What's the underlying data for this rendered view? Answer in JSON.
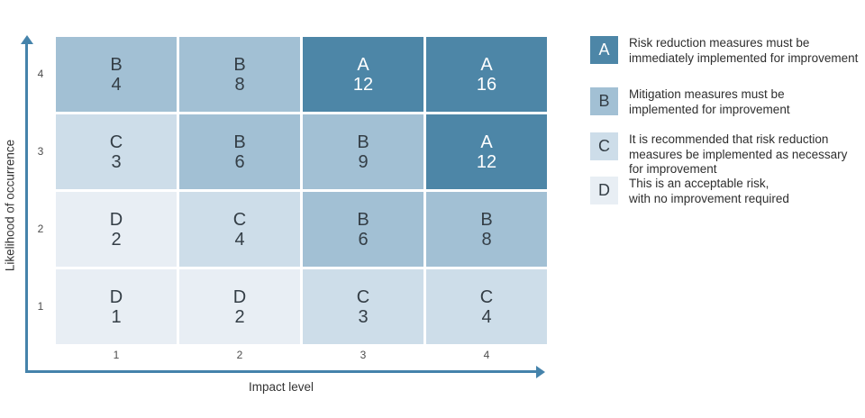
{
  "chart_data": {
    "type": "heatmap",
    "title": "",
    "xlabel": "Impact level",
    "ylabel": "Likelihood of occurrence",
    "x_tick_labels": [
      "1",
      "2",
      "3",
      "4"
    ],
    "y_tick_labels_top_to_bottom": [
      "4",
      "3",
      "2",
      "1"
    ],
    "legend_position": "right",
    "grid": false,
    "rows": [
      {
        "likelihood": "4",
        "cells": [
          {
            "rating": "B",
            "score": "4"
          },
          {
            "rating": "B",
            "score": "8"
          },
          {
            "rating": "A",
            "score": "12"
          },
          {
            "rating": "A",
            "score": "16"
          }
        ]
      },
      {
        "likelihood": "3",
        "cells": [
          {
            "rating": "C",
            "score": "3"
          },
          {
            "rating": "B",
            "score": "6"
          },
          {
            "rating": "B",
            "score": "9"
          },
          {
            "rating": "A",
            "score": "12"
          }
        ]
      },
      {
        "likelihood": "2",
        "cells": [
          {
            "rating": "D",
            "score": "2"
          },
          {
            "rating": "C",
            "score": "4"
          },
          {
            "rating": "B",
            "score": "6"
          },
          {
            "rating": "B",
            "score": "8"
          }
        ]
      },
      {
        "likelihood": "1",
        "cells": [
          {
            "rating": "D",
            "score": "1"
          },
          {
            "rating": "D",
            "score": "2"
          },
          {
            "rating": "C",
            "score": "3"
          },
          {
            "rating": "C",
            "score": "4"
          }
        ]
      }
    ],
    "rating_colors": {
      "A": "#4d86a7",
      "B": "#a2c0d4",
      "C": "#cddde9",
      "D": "#e8eef4"
    },
    "rating_text_colors": {
      "A": "#ffffff",
      "B": "#343e46",
      "C": "#343e46",
      "D": "#343e46"
    }
  },
  "legend": {
    "items": [
      {
        "rating": "A",
        "description": "Risk reduction measures must be\nimmediately implemented for improvement"
      },
      {
        "rating": "B",
        "description": "Mitigation measures must be\nimplemented for improvement"
      },
      {
        "rating": "C",
        "description": "It is recommended that risk reduction\nmeasures be implemented as necessary\nfor improvement"
      },
      {
        "rating": "D",
        "description": "This is an acceptable risk,\nwith no improvement required"
      }
    ]
  },
  "colors": {
    "axis": "#4583ab",
    "background": "#ffffff",
    "tick_label": "#4d4d4d",
    "axis_label": "#333333",
    "legend_text": "#2e2e2e"
  }
}
